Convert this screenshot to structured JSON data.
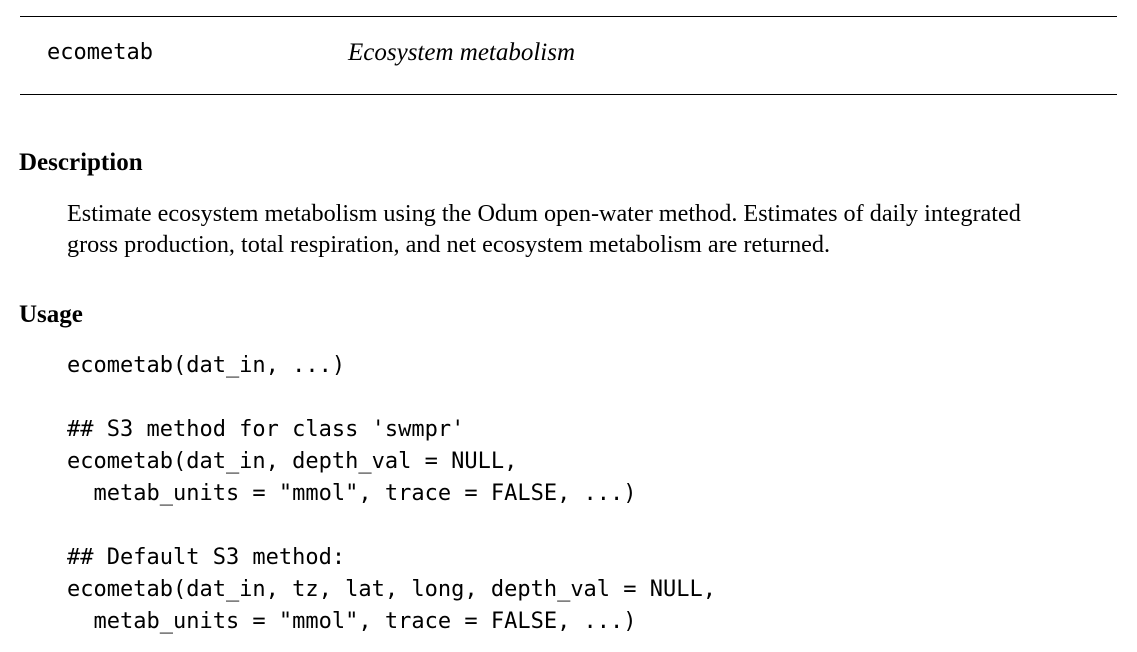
{
  "header": {
    "function_name": "ecometab",
    "title": "Ecosystem metabolism"
  },
  "description": {
    "heading": "Description",
    "lines": [
      "Estimate ecosystem metabolism using the Odum open-water method. Estimates of daily integrated",
      "gross production, total respiration, and net ecosystem metabolism are returned."
    ]
  },
  "usage": {
    "heading": "Usage",
    "code_lines": [
      "ecometab(dat_in, ...)",
      "",
      "## S3 method for class 'swmpr'",
      "ecometab(dat_in, depth_val = NULL,",
      "  metab_units = \"mmol\", trace = FALSE, ...)",
      "",
      "## Default S3 method:",
      "ecometab(dat_in, tz, lat, long, depth_val = NULL,",
      "  metab_units = \"mmol\", trace = FALSE, ...)"
    ]
  }
}
